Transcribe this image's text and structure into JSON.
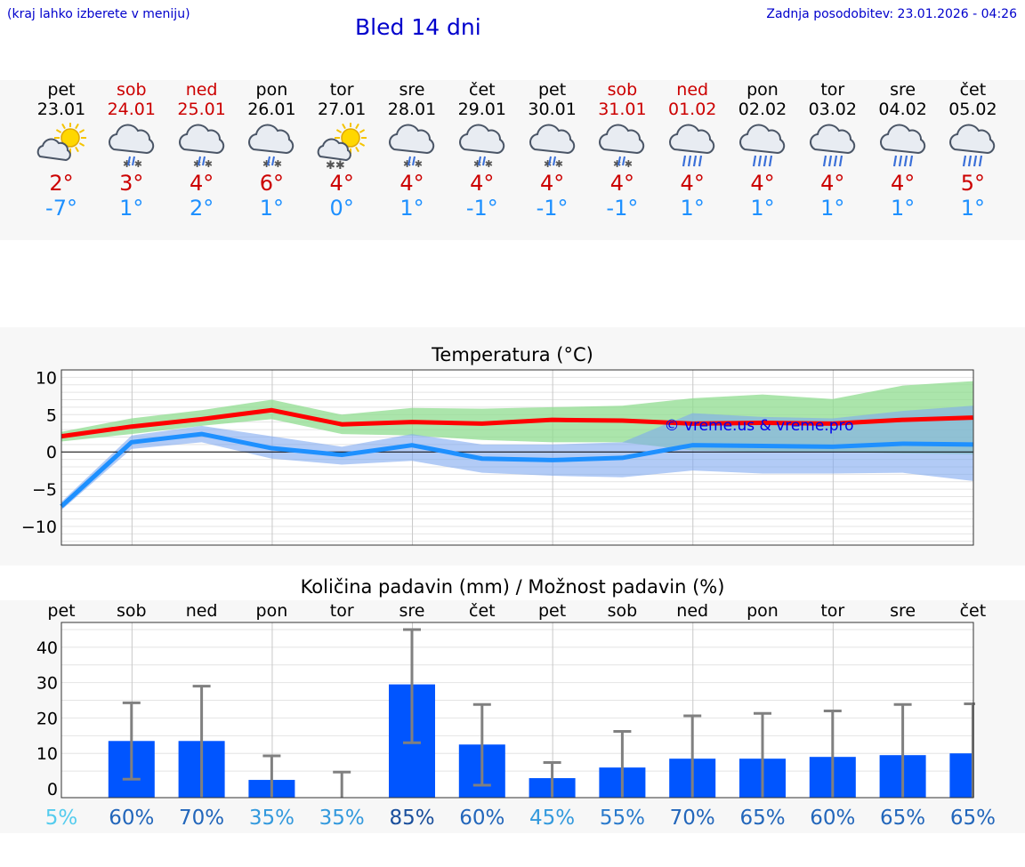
{
  "header": {
    "hint": "(kraj lahko izberete v meniju)",
    "title": "Bled 14 dni",
    "updated": "Zadnja posodobitev: 23.01.2026 - 04:26"
  },
  "days": [
    {
      "name": "pet",
      "date": "23.01",
      "weekend": false,
      "icon": "sun-cloud-icon",
      "tmax": "2°",
      "tmin": "-7°"
    },
    {
      "name": "sob",
      "date": "24.01",
      "weekend": true,
      "icon": "cloud-snow-icon",
      "tmax": "3°",
      "tmin": "1°"
    },
    {
      "name": "ned",
      "date": "25.01",
      "weekend": true,
      "icon": "cloud-snow-icon",
      "tmax": "4°",
      "tmin": "2°"
    },
    {
      "name": "pon",
      "date": "26.01",
      "weekend": false,
      "icon": "cloud-snow-icon",
      "tmax": "6°",
      "tmin": "1°"
    },
    {
      "name": "tor",
      "date": "27.01",
      "weekend": false,
      "icon": "sun-cloud-snow-icon",
      "tmax": "4°",
      "tmin": "0°"
    },
    {
      "name": "sre",
      "date": "28.01",
      "weekend": false,
      "icon": "cloud-snow-icon",
      "tmax": "4°",
      "tmin": "1°"
    },
    {
      "name": "čet",
      "date": "29.01",
      "weekend": false,
      "icon": "cloud-snow-icon",
      "tmax": "4°",
      "tmin": "-1°"
    },
    {
      "name": "pet",
      "date": "30.01",
      "weekend": false,
      "icon": "cloud-snow-icon",
      "tmax": "4°",
      "tmin": "-1°"
    },
    {
      "name": "sob",
      "date": "31.01",
      "weekend": true,
      "icon": "cloud-snow-icon",
      "tmax": "4°",
      "tmin": "-1°"
    },
    {
      "name": "ned",
      "date": "01.02",
      "weekend": true,
      "icon": "cloud-rain-icon",
      "tmax": "4°",
      "tmin": "1°"
    },
    {
      "name": "pon",
      "date": "02.02",
      "weekend": false,
      "icon": "cloud-rain-icon",
      "tmax": "4°",
      "tmin": "1°"
    },
    {
      "name": "tor",
      "date": "03.02",
      "weekend": false,
      "icon": "cloud-rain-icon",
      "tmax": "4°",
      "tmin": "1°"
    },
    {
      "name": "sre",
      "date": "04.02",
      "weekend": false,
      "icon": "cloud-rain-icon",
      "tmax": "4°",
      "tmin": "1°"
    },
    {
      "name": "čet",
      "date": "05.02",
      "weekend": false,
      "icon": "cloud-rain-icon",
      "tmax": "5°",
      "tmin": "1°"
    }
  ],
  "colors": {
    "weekend": "#cc0000",
    "weekday": "#000000",
    "max_line": "#ff0000",
    "min_line": "#1e90ff",
    "max_band": "#8fdc8f",
    "min_band": "#7fa8f0",
    "bar": "#0055ff",
    "whisker": "#808080"
  },
  "chart_data": [
    {
      "type": "line",
      "title": "Temperatura (°C)",
      "ylim": [
        -12.5,
        11
      ],
      "yticks": [
        10,
        5,
        0,
        -5,
        -10
      ],
      "ytick_labels": [
        "10",
        "5",
        "0",
        "−5",
        "−10"
      ],
      "x": [
        0,
        1,
        2,
        3,
        4,
        5,
        6,
        7,
        8,
        9,
        10,
        11,
        12,
        13
      ],
      "watermark": "© vreme.us & vreme.pro",
      "series": [
        {
          "name": "max",
          "values": [
            2.1,
            3.4,
            4.4,
            5.6,
            3.7,
            4.0,
            3.8,
            4.3,
            4.2,
            3.8,
            3.9,
            3.8,
            4.3,
            4.6
          ],
          "band_low": [
            1.4,
            2.4,
            3.5,
            4.4,
            2.4,
            2.2,
            1.6,
            1.3,
            1.3,
            0.2,
            0,
            0,
            -0.2,
            -0.3
          ],
          "band_high": [
            2.7,
            4.5,
            5.6,
            7.0,
            5.0,
            5.9,
            5.8,
            6.0,
            6.2,
            7.2,
            7.7,
            7.1,
            8.9,
            9.5
          ]
        },
        {
          "name": "min",
          "values": [
            -7.3,
            1.3,
            2.4,
            0.5,
            -0.4,
            0.9,
            -0.9,
            -1.1,
            -0.8,
            0.9,
            0.8,
            0.7,
            1.1,
            1.0
          ],
          "band_low": [
            -7.8,
            0.4,
            1.3,
            -0.9,
            -1.7,
            -1.2,
            -2.8,
            -3.2,
            -3.4,
            -2.5,
            -2.9,
            -2.9,
            -2.8,
            -3.9
          ],
          "band_high": [
            -6.7,
            2.2,
            3.5,
            2.1,
            0.7,
            2.4,
            1.0,
            1.0,
            1.3,
            5.2,
            4.7,
            4.5,
            5.5,
            6.2
          ]
        }
      ]
    },
    {
      "type": "bar",
      "title": "Količina padavin (mm) / Možnost padavin (%)",
      "categories": [
        "pet",
        "sob",
        "ned",
        "pon",
        "tor",
        "sre",
        "čet",
        "pet",
        "sob",
        "ned",
        "pon",
        "tor",
        "sre",
        "čet"
      ],
      "ylim": [
        0,
        47
      ],
      "yticks": [
        0,
        10,
        20,
        30,
        40
      ],
      "values": [
        0,
        13.5,
        13.5,
        2.5,
        0,
        29.5,
        12.5,
        3,
        6,
        8.5,
        8.5,
        9,
        9.5,
        10
      ],
      "err_low": [
        0,
        2.7,
        0,
        0,
        0,
        13,
        1,
        0,
        0,
        0,
        0,
        0,
        0,
        0
      ],
      "err_high": [
        0,
        24.3,
        29,
        9.3,
        4.7,
        45,
        23.8,
        7.4,
        16.2,
        20.6,
        21.3,
        22,
        23.8,
        24
      ],
      "probability": [
        "5%",
        "60%",
        "70%",
        "35%",
        "35%",
        "85%",
        "60%",
        "45%",
        "55%",
        "70%",
        "65%",
        "60%",
        "65%",
        "65%"
      ],
      "probability_colors": [
        "#55ccee",
        "#2266bb",
        "#2266bb",
        "#3399dd",
        "#3399dd",
        "#1a4f9c",
        "#2266bb",
        "#3399dd",
        "#2a7acc",
        "#2266bb",
        "#2266bb",
        "#2266bb",
        "#2266bb",
        "#2266bb"
      ]
    }
  ]
}
